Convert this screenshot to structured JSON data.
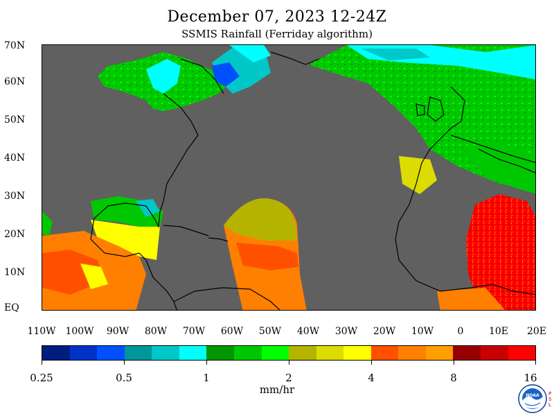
{
  "header": {
    "title": "December 07, 2023 12-24Z",
    "subtitle": "SSMIS Rainfall (Ferriday algorithm)"
  },
  "axes": {
    "lat_labels": [
      "70N",
      "60N",
      "50N",
      "40N",
      "30N",
      "20N",
      "10N",
      "EQ"
    ],
    "lon_labels": [
      "110W",
      "100W",
      "90W",
      "80W",
      "70W",
      "60W",
      "50W",
      "40W",
      "30W",
      "20W",
      "10W",
      "0",
      "10E",
      "20E"
    ],
    "lat_range": [
      0,
      70
    ],
    "lon_range": [
      -110,
      20
    ]
  },
  "colorbar": {
    "tick_labels": [
      "0.25",
      "0.5",
      "1",
      "2",
      "4",
      "8",
      "16"
    ],
    "units": "mm/hr",
    "colors": [
      "#001c7e",
      "#0032c8",
      "#0050ff",
      "#00969a",
      "#00c8c8",
      "#00ffff",
      "#009600",
      "#00c800",
      "#00ff00",
      "#b4b400",
      "#dcdc00",
      "#ffff00",
      "#ff5000",
      "#ff8000",
      "#ffa000",
      "#960000",
      "#c80000",
      "#ff0000"
    ]
  },
  "map_colors": {
    "no_data": "#606060",
    "coast": "#000000"
  },
  "logo": {
    "name": "NOAA",
    "side_text": "PSL"
  }
}
